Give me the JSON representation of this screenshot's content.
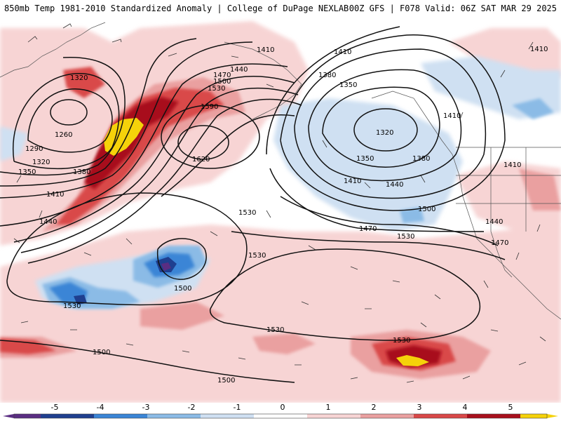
{
  "header": {
    "left_title": "850mb Temp 1981-2010 Standardized Anomaly | College of DuPage NEXLAB",
    "right_title": "00Z GFS | F078 Valid: 06Z SAT MAR 29 2025"
  },
  "colors": {
    "strong_neg": "#5a2d82",
    "neg4": "#1f3f8f",
    "neg3": "#3a85d6",
    "neg2": "#8bbbe6",
    "neg1": "#cfe0f2",
    "pos1": "#f7d4d4",
    "pos2": "#eaa0a0",
    "pos3": "#d94848",
    "pos4": "#a80f1c",
    "pos5": "#f5d20a",
    "contour": "#111111"
  },
  "colorbar": {
    "labels": [
      "-5",
      "-4",
      "-3",
      "-2",
      "-1",
      "0",
      "1",
      "2",
      "3",
      "4",
      "5"
    ]
  },
  "contour_labels": {
    "c1320_w": "1320",
    "c1260": "1260",
    "c1290": "1290",
    "c1320_w2": "1320",
    "c1350_w": "1350",
    "c1380_w": "1380",
    "c1410_w": "1410",
    "c1440_w": "1440",
    "c1410_n": "1410",
    "c1440_n": "1440",
    "c1470_n": "1470",
    "c1500_n": "1500",
    "c1530_n": "1530",
    "c1590": "1590",
    "c1620": "1620",
    "c1410_ne": "1410",
    "c1380_e": "1380",
    "c1350_e": "1350",
    "c1320_e": "1320",
    "c1350_e2": "1350",
    "c1380_e2": "1380",
    "c1410_e": "1410",
    "c1440_e": "1440",
    "c1410_far": "1410",
    "c1410_coast": "1410",
    "c1500_e": "1500",
    "c1470_e": "1470",
    "c1530_e": "1530",
    "c1440_coast": "1440",
    "c1470_coast": "1470",
    "c1530_c": "1530",
    "c1530_c2": "1530",
    "c1500_c": "1500",
    "c1530_sw": "1530",
    "c1530_s": "1530",
    "c1530_s2": "1530",
    "c1500_sw": "1500",
    "c1500_s": "1500"
  }
}
